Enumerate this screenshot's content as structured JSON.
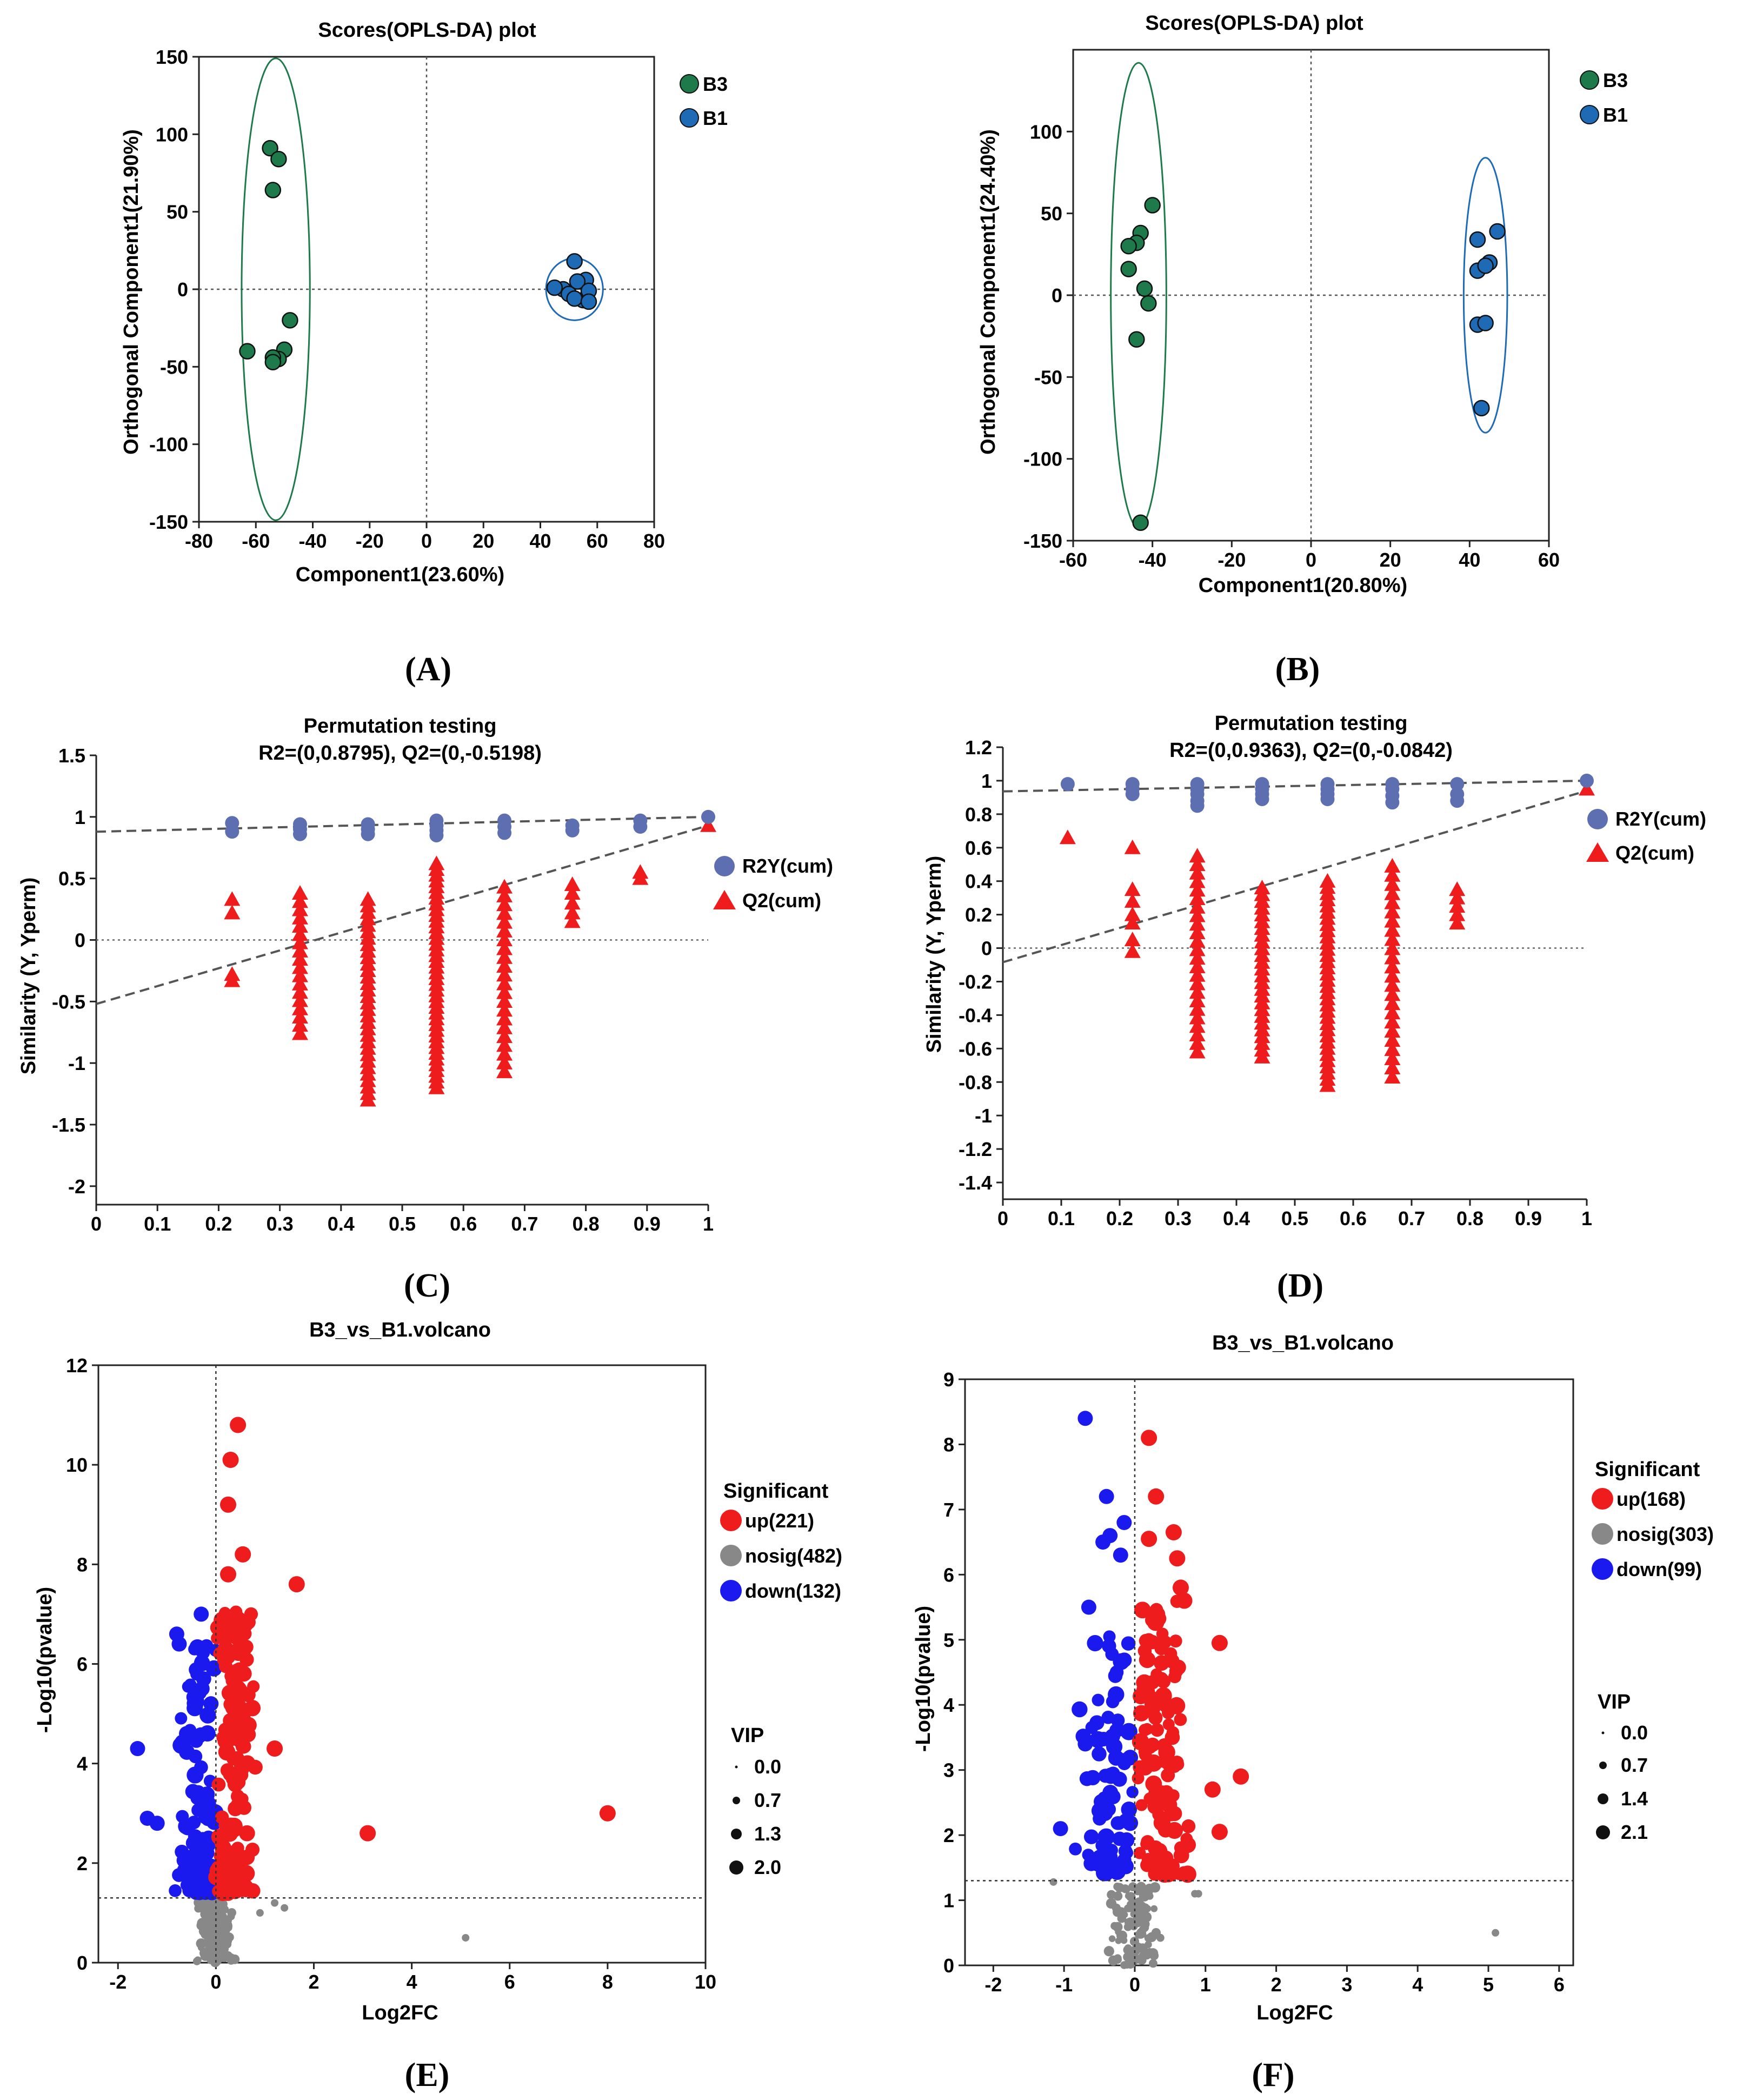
{
  "colors": {
    "green": "#1e7a4a",
    "blue": "#1f6ab4",
    "permBlue": "#5d6fb0",
    "red": "#ee1c1c",
    "grey": "#888888",
    "volcBlue": "#1a1aee"
  },
  "chart_data": [
    {
      "panel": "(A)",
      "type": "scatter",
      "title": "Scores(OPLS-DA) plot",
      "xlabel": "Component1(23.60%)",
      "ylabel": "Orthogonal Component1(21.90%)",
      "xlim": [
        -80,
        80
      ],
      "ylim": [
        -150,
        150
      ],
      "xticks": [
        -80,
        -60,
        -40,
        -20,
        0,
        20,
        40,
        60,
        80
      ],
      "yticks": [
        -150,
        -100,
        -50,
        0,
        50,
        100,
        150
      ],
      "legend": [
        "B3",
        "B1"
      ],
      "series": [
        {
          "name": "B3",
          "color": "green",
          "points": [
            [
              -55,
              91
            ],
            [
              -52,
              84
            ],
            [
              -54,
              64
            ],
            [
              -63,
              -40
            ],
            [
              -48,
              -20
            ],
            [
              -50,
              -39
            ],
            [
              -52,
              -45
            ],
            [
              -54,
              -44
            ],
            [
              -54,
              -47
            ]
          ],
          "ellipse": {
            "cx": -53,
            "cy": 0,
            "rx": 12,
            "ry": 149
          }
        },
        {
          "name": "B1",
          "color": "blue",
          "points": [
            [
              52,
              18
            ],
            [
              56,
              6
            ],
            [
              48,
              0
            ],
            [
              53,
              5
            ],
            [
              50,
              -3
            ],
            [
              55,
              -7
            ],
            [
              52,
              -6
            ],
            [
              57,
              -1
            ],
            [
              45,
              1
            ],
            [
              57,
              -8
            ]
          ],
          "ellipse": {
            "cx": 52,
            "cy": 0,
            "rx": 10,
            "ry": 20
          }
        }
      ]
    },
    {
      "panel": "(B)",
      "type": "scatter",
      "title": "Scores(OPLS-DA) plot",
      "xlabel": "Component1(20.80%)",
      "ylabel": "Orthogonal Component1(24.40%)",
      "xlim": [
        -60,
        60
      ],
      "ylim": [
        -150,
        150
      ],
      "xticks": [
        -60,
        -40,
        -20,
        0,
        20,
        40,
        60
      ],
      "yticks": [
        -150,
        -100,
        -50,
        0,
        50,
        100
      ],
      "legend": [
        "B3",
        "B1"
      ],
      "series": [
        {
          "name": "B3",
          "color": "green",
          "points": [
            [
              -40,
              55
            ],
            [
              -43,
              38
            ],
            [
              -44,
              32
            ],
            [
              -46,
              30
            ],
            [
              -46,
              16
            ],
            [
              -42,
              4
            ],
            [
              -41,
              -5
            ],
            [
              -44,
              -27
            ],
            [
              -43,
              -139
            ]
          ],
          "ellipse": {
            "cx": -43.5,
            "cy": 0,
            "rx": 7,
            "ry": 142
          }
        },
        {
          "name": "B1",
          "color": "blue",
          "points": [
            [
              47,
              39
            ],
            [
              42,
              34
            ],
            [
              45,
              20
            ],
            [
              42,
              15
            ],
            [
              44,
              18
            ],
            [
              42,
              -18
            ],
            [
              44,
              -17
            ],
            [
              43,
              -69
            ]
          ],
          "ellipse": {
            "cx": 44,
            "cy": 0,
            "rx": 5.5,
            "ry": 84
          }
        }
      ]
    },
    {
      "panel": "(C)",
      "type": "scatter",
      "title": "Permutation testing",
      "subtitle": "R2=(0,0.8795), Q2=(0,-0.5198)",
      "xlabel": "",
      "ylabel": "Similarity (Y, Yperm)",
      "xlim": [
        0,
        1
      ],
      "ylim": [
        -2.15,
        1.5
      ],
      "xticks": [
        "0",
        "0.1",
        "0.2",
        "0.3",
        "0.4",
        "0.5",
        "0.6",
        "0.7",
        "0.8",
        "0.9",
        "1"
      ],
      "yticks": [
        "1.5",
        "1",
        "0.5",
        "0",
        "-0.5",
        "-1",
        "-1.5",
        "-2"
      ],
      "ytickvals": [
        1.5,
        1,
        0.5,
        0,
        -0.5,
        -1,
        -1.5,
        -2
      ],
      "legend": [
        "R2Y(cum)",
        "Q2(cum)"
      ],
      "r2_line": [
        [
          0,
          0.8795
        ],
        [
          1,
          1
        ]
      ],
      "q2_line": [
        [
          0,
          -0.5198
        ],
        [
          1,
          0.93
        ]
      ],
      "r2_points": [
        [
          0.222,
          0.95
        ],
        [
          0.222,
          0.88
        ],
        [
          0.333,
          0.94
        ],
        [
          0.333,
          0.9
        ],
        [
          0.333,
          0.86
        ],
        [
          0.444,
          0.94
        ],
        [
          0.444,
          0.9
        ],
        [
          0.444,
          0.86
        ],
        [
          0.556,
          0.97
        ],
        [
          0.556,
          0.93
        ],
        [
          0.556,
          0.89
        ],
        [
          0.556,
          0.85
        ],
        [
          0.667,
          0.97
        ],
        [
          0.667,
          0.92
        ],
        [
          0.667,
          0.87
        ],
        [
          0.778,
          0.93
        ],
        [
          0.778,
          0.89
        ],
        [
          0.889,
          0.97
        ],
        [
          0.889,
          0.92
        ],
        [
          1,
          1
        ]
      ],
      "q2_columns": [
        {
          "x": 0.222,
          "values": [
            0.33,
            0.22,
            -0.28,
            -0.33
          ]
        },
        {
          "x": 0.333,
          "min": -0.76,
          "max": 0.38,
          "n": 18
        },
        {
          "x": 0.444,
          "min": -1.3,
          "max": 0.33,
          "n": 32
        },
        {
          "x": 0.556,
          "min": -1.2,
          "max": 0.62,
          "n": 40
        },
        {
          "x": 0.667,
          "min": -1.07,
          "max": 0.43,
          "n": 22
        },
        {
          "x": 0.778,
          "values": [
            0.45,
            0.38,
            0.3,
            0.22,
            0.15
          ]
        },
        {
          "x": 0.889,
          "values": [
            0.55,
            0.5
          ]
        },
        {
          "x": 1,
          "values": [
            0.93
          ]
        }
      ]
    },
    {
      "panel": "(D)",
      "type": "scatter",
      "title": "Permutation testing",
      "subtitle": "R2=(0,0.9363), Q2=(0,-0.0842)",
      "xlabel": "",
      "ylabel": "Similarity (Y, Yperm)",
      "xlim": [
        0,
        1
      ],
      "ylim": [
        -1.5,
        1.2
      ],
      "xticks": [
        "0",
        "0.1",
        "0.2",
        "0.3",
        "0.4",
        "0.5",
        "0.6",
        "0.7",
        "0.8",
        "0.9",
        "1"
      ],
      "yticks": [
        "1.2",
        "1",
        "0.8",
        "0.6",
        "0.4",
        "0.2",
        "0",
        "-0.2",
        "-0.4",
        "-0.6",
        "-0.8",
        "-1",
        "-1.2",
        "-1.4"
      ],
      "ytickvals": [
        1.2,
        1,
        0.8,
        0.6,
        0.4,
        0.2,
        0,
        -0.2,
        -0.4,
        -0.6,
        -0.8,
        -1,
        -1.2,
        -1.4
      ],
      "legend": [
        "R2Y(cum)",
        "Q2(cum)"
      ],
      "r2_line": [
        [
          0,
          0.9363
        ],
        [
          1,
          1
        ]
      ],
      "q2_line": [
        [
          0,
          -0.0842
        ],
        [
          1,
          0.94
        ]
      ],
      "r2_points": [
        [
          0.111,
          0.98
        ],
        [
          0.222,
          0.98
        ],
        [
          0.222,
          0.95
        ],
        [
          0.222,
          0.92
        ],
        [
          0.333,
          0.98
        ],
        [
          0.333,
          0.95
        ],
        [
          0.333,
          0.92
        ],
        [
          0.333,
          0.88
        ],
        [
          0.333,
          0.85
        ],
        [
          0.444,
          0.98
        ],
        [
          0.444,
          0.95
        ],
        [
          0.444,
          0.92
        ],
        [
          0.444,
          0.89
        ],
        [
          0.556,
          0.98
        ],
        [
          0.556,
          0.95
        ],
        [
          0.556,
          0.92
        ],
        [
          0.556,
          0.89
        ],
        [
          0.667,
          0.98
        ],
        [
          0.667,
          0.95
        ],
        [
          0.667,
          0.91
        ],
        [
          0.667,
          0.87
        ],
        [
          0.778,
          0.98
        ],
        [
          0.778,
          0.92
        ],
        [
          0.778,
          0.88
        ],
        [
          1,
          1
        ]
      ],
      "q2_columns": [
        {
          "x": 0.111,
          "values": [
            0.66
          ]
        },
        {
          "x": 0.222,
          "values": [
            0.6,
            0.35,
            0.28,
            0.2,
            0.15,
            0.05,
            -0.02
          ]
        },
        {
          "x": 0.333,
          "min": -0.62,
          "max": 0.55,
          "n": 24
        },
        {
          "x": 0.444,
          "min": -0.65,
          "max": 0.36,
          "n": 26
        },
        {
          "x": 0.556,
          "min": -0.82,
          "max": 0.4,
          "n": 34
        },
        {
          "x": 0.667,
          "min": -0.77,
          "max": 0.49,
          "n": 24
        },
        {
          "x": 0.778,
          "values": [
            0.35,
            0.3,
            0.25,
            0.2,
            0.15
          ]
        },
        {
          "x": 1,
          "values": [
            0.95
          ]
        }
      ]
    },
    {
      "panel": "(E)",
      "type": "scatter",
      "title": "B3_vs_B1.volcano",
      "xlabel": "Log2FC",
      "ylabel": "-Log10(pvalue)",
      "xlim": [
        -2.4,
        10
      ],
      "ylim": [
        0,
        12
      ],
      "xticks": [
        -2,
        0,
        2,
        4,
        6,
        8,
        10
      ],
      "yticks": [
        0,
        2,
        4,
        6,
        8,
        10,
        12
      ],
      "threshold": 1.3,
      "legend_title": "Significant",
      "legend": [
        "up(221)",
        "nosig(482)",
        "down(132)"
      ],
      "vip_title": "VIP",
      "vip": [
        "0.0",
        "0.7",
        "1.3",
        "2.0"
      ],
      "up_extra": [
        [
          0.45,
          10.8
        ],
        [
          0.3,
          10.1
        ],
        [
          0.55,
          8.2
        ],
        [
          0.25,
          7.8
        ],
        [
          1.65,
          7.6
        ],
        [
          0.45,
          6.9
        ],
        [
          0.6,
          6.8
        ],
        [
          0.2,
          6.3
        ],
        [
          3.1,
          2.6
        ],
        [
          8.0,
          3.0
        ],
        [
          0.25,
          9.2
        ],
        [
          1.2,
          4.3
        ]
      ],
      "down_extra": [
        [
          -0.3,
          7.0
        ],
        [
          -0.8,
          6.6
        ],
        [
          -0.75,
          6.4
        ],
        [
          -1.6,
          4.3
        ],
        [
          -1.4,
          2.9
        ],
        [
          -1.2,
          2.8
        ],
        [
          -0.25,
          5.7
        ],
        [
          -0.1,
          5.2
        ],
        [
          -0.6,
          4.6
        ]
      ],
      "grey_extra": [
        [
          5.1,
          0.5
        ],
        [
          1.4,
          1.1
        ],
        [
          1.2,
          1.2
        ],
        [
          0.9,
          1.0
        ]
      ],
      "seed": 11,
      "n_up": 140,
      "n_down": 110,
      "n_grey": 140
    },
    {
      "panel": "(F)",
      "type": "scatter",
      "title": "B3_vs_B1.volcano",
      "xlabel": "Log2FC",
      "ylabel": "-Log10(pvalue)",
      "xlim": [
        -2.4,
        6.2
      ],
      "ylim": [
        0,
        9
      ],
      "xticks": [
        -2,
        -1,
        0,
        1,
        2,
        3,
        4,
        5,
        6
      ],
      "yticks": [
        0,
        1,
        2,
        3,
        4,
        5,
        6,
        7,
        8,
        9
      ],
      "threshold": 1.3,
      "legend_title": "Significant",
      "legend": [
        "up(168)",
        "nosig(303)",
        "down(99)"
      ],
      "vip_title": "VIP",
      "vip": [
        "0.0",
        "0.7",
        "1.4",
        "2.1"
      ],
      "up_extra": [
        [
          0.2,
          8.1
        ],
        [
          0.3,
          7.2
        ],
        [
          0.55,
          6.65
        ],
        [
          0.2,
          6.55
        ],
        [
          0.6,
          6.25
        ],
        [
          0.65,
          5.8
        ],
        [
          0.7,
          5.6
        ],
        [
          1.2,
          4.95
        ],
        [
          1.5,
          2.9
        ],
        [
          1.1,
          2.7
        ],
        [
          1.2,
          2.05
        ],
        [
          0.75,
          1.85
        ]
      ],
      "down_extra": [
        [
          -0.7,
          8.4
        ],
        [
          -0.4,
          7.2
        ],
        [
          -0.15,
          6.8
        ],
        [
          -0.35,
          6.6
        ],
        [
          -0.45,
          6.5
        ],
        [
          -0.65,
          5.5
        ],
        [
          -0.7,
          3.4
        ],
        [
          -1.05,
          2.1
        ],
        [
          -0.2,
          6.3
        ]
      ],
      "grey_extra": [
        [
          5.1,
          0.5
        ],
        [
          -1.15,
          1.28
        ],
        [
          0.85,
          1.1
        ],
        [
          0.9,
          1.1
        ]
      ],
      "seed": 23,
      "n_up": 120,
      "n_down": 80,
      "n_grey": 110
    }
  ]
}
